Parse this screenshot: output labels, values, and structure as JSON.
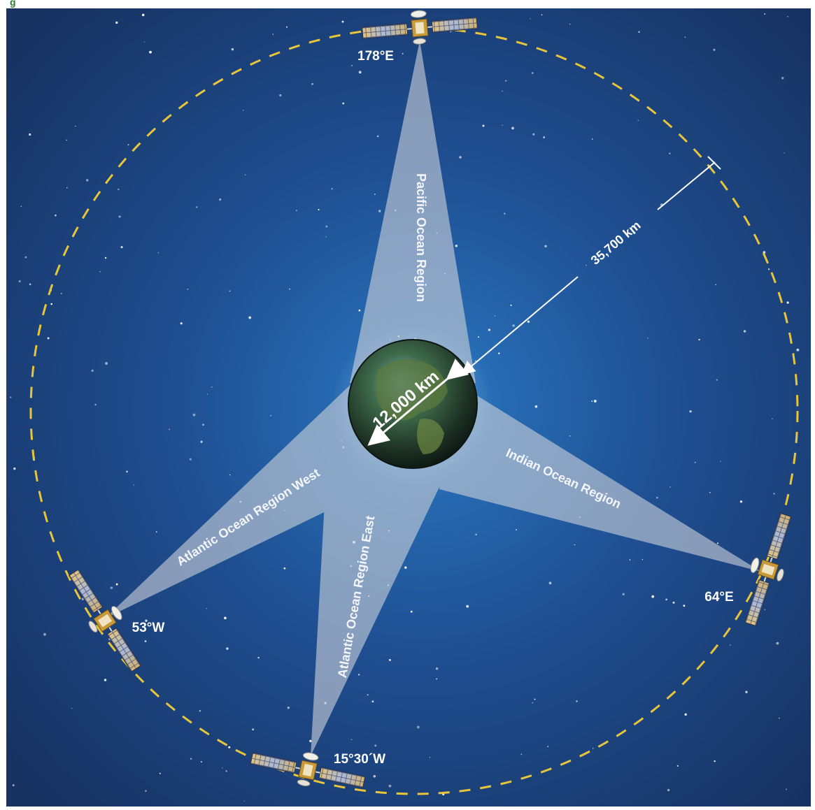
{
  "header": {
    "title_fragment": "g"
  },
  "satellites": [
    {
      "id": "pacific",
      "label": "178°E"
    },
    {
      "id": "indian",
      "label": "64°E"
    },
    {
      "id": "aor-west",
      "label": "53°W"
    },
    {
      "id": "aor-east",
      "label": "15°30´W"
    }
  ],
  "regions": {
    "pacific": "Pacific Ocean Region",
    "indian": "Indian Ocean Region",
    "aor_west": "Atlantic Ocean Region West",
    "aor_east": "Atlantic Ocean Region East"
  },
  "distances": {
    "orbit": "35,700 km",
    "earth": "12,000 km"
  },
  "colors": {
    "space_center": "#2a78c2",
    "space_edge": "#173261",
    "orbit": "#e9c53a",
    "beam": "#c9cfd8",
    "title_green": "#2e7d32"
  }
}
